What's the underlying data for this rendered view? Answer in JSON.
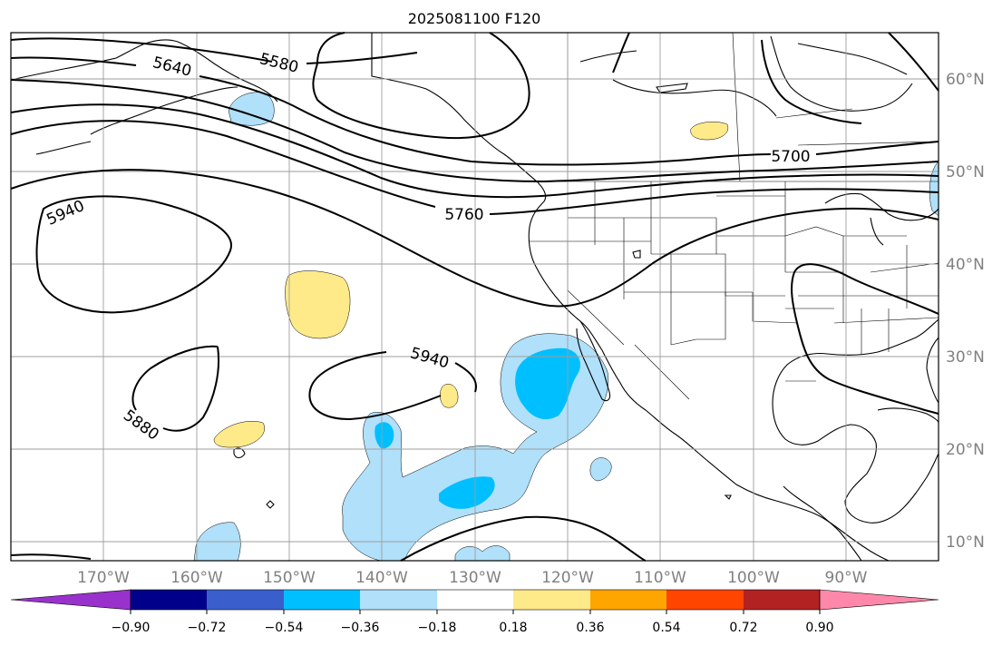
{
  "title": "2025081100 F120",
  "map": {
    "lon_labels": [
      "170°W",
      "160°W",
      "150°W",
      "140°W",
      "130°W",
      "120°W",
      "110°W",
      "100°W",
      "90°W"
    ],
    "lat_labels": [
      "60°N",
      "50°N",
      "40°N",
      "30°N",
      "20°N",
      "10°N"
    ],
    "grid": true
  },
  "contours": {
    "color": "#000000",
    "labels": [
      "5640",
      "5580",
      "5700",
      "5760",
      "5940",
      "5940",
      "5880"
    ]
  },
  "colorbar": {
    "orientation": "horizontal",
    "extend": "both",
    "colors": [
      "#9932cc",
      "#00008b",
      "#3a5fcd",
      "#00bfff",
      "#b0e0fa",
      "#ffffff",
      "#ffea8a",
      "#ffa500",
      "#ff4500",
      "#b22222",
      "#ff88aa"
    ],
    "tick_labels": [
      "−0.90",
      "−0.72",
      "−0.54",
      "−0.36",
      "−0.18",
      "0.18",
      "0.36",
      "0.54",
      "0.72",
      "0.90"
    ]
  },
  "fill_colors": {
    "neg_light": "#b0e0fa",
    "neg_mid": "#00bfff",
    "pos_light": "#ffea8a"
  },
  "land_color": "#000000"
}
